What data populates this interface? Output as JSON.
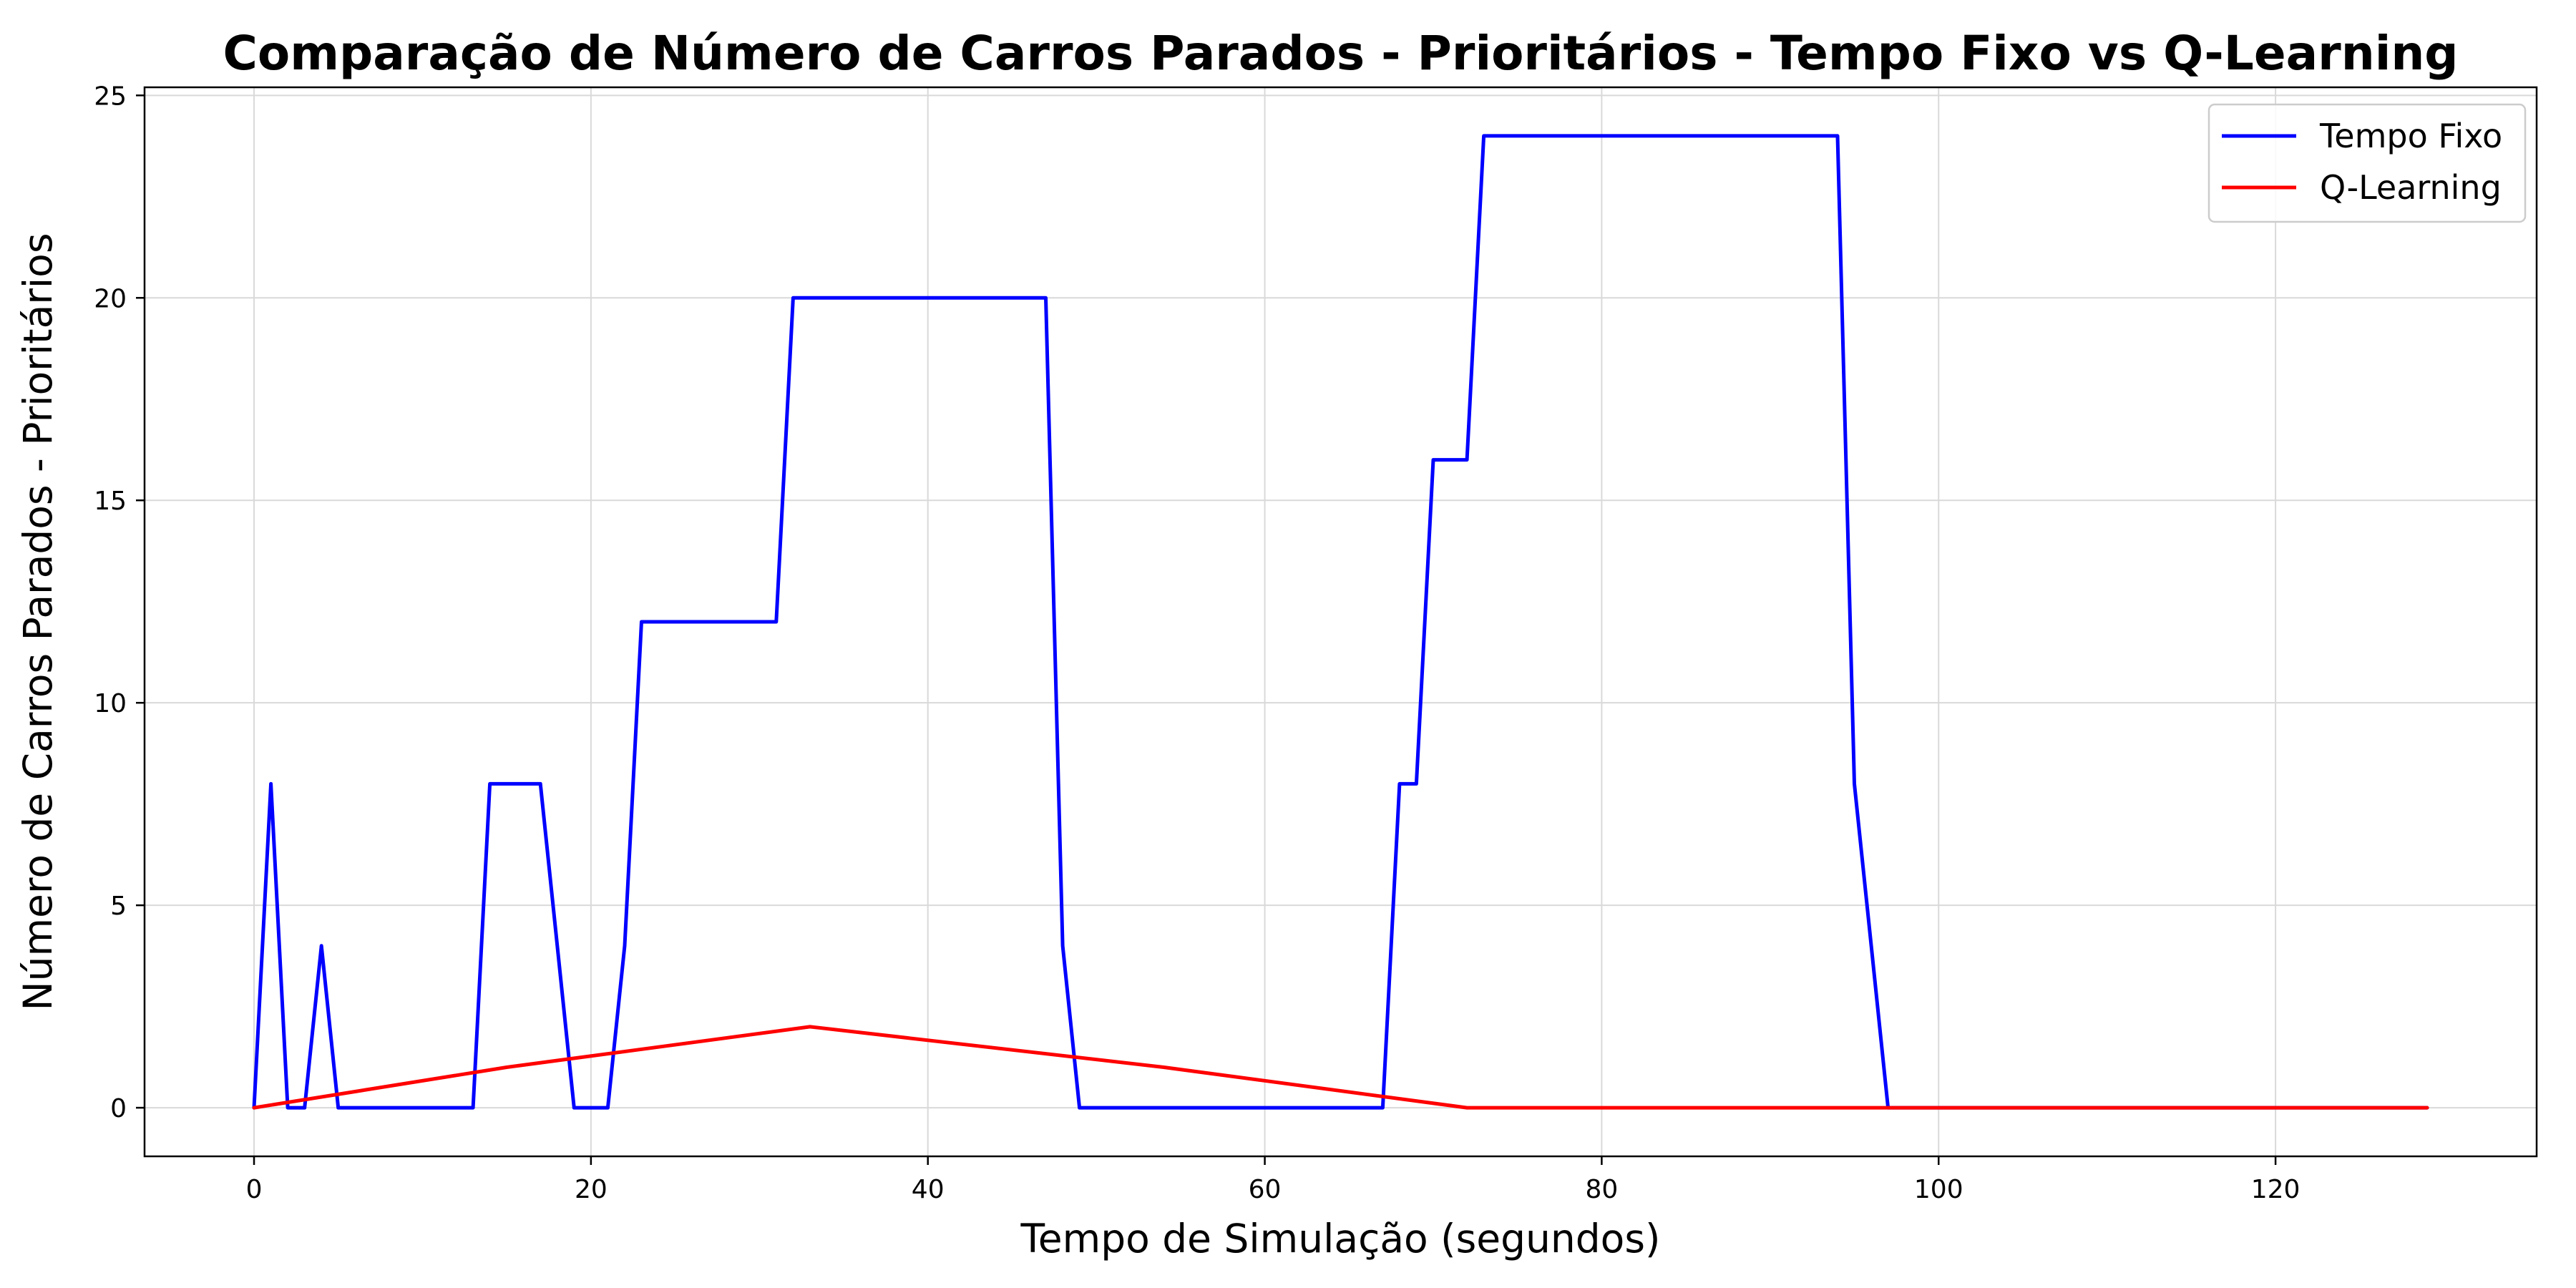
{
  "chart_data": {
    "type": "line",
    "title": "Comparação de Número de Carros Parados - Prioritários - Tempo Fixo vs Q-Learning",
    "xlabel": "Tempo de Simulação (segundos)",
    "ylabel": "Número de Carros Parados - Prioritários",
    "xlim": [
      -6.5,
      135.5
    ],
    "ylim": [
      -1.2,
      25.2
    ],
    "xticks": [
      0,
      20,
      40,
      60,
      80,
      100,
      120
    ],
    "yticks": [
      0,
      5,
      10,
      15,
      20,
      25
    ],
    "grid": true,
    "legend_position": "top-right",
    "series": [
      {
        "name": "Tempo Fixo",
        "color": "#0000ff",
        "x": [
          0,
          1,
          2,
          3,
          4,
          5,
          6,
          13,
          14,
          15,
          16,
          17,
          18,
          19,
          20,
          21,
          22,
          23,
          24,
          30,
          31,
          32,
          33,
          46,
          47,
          48,
          49,
          67,
          68,
          69,
          70,
          71,
          72,
          73,
          94,
          95,
          96,
          97,
          129
        ],
        "y": [
          0,
          8,
          0,
          0,
          4,
          0,
          0,
          0,
          8,
          8,
          8,
          8,
          4,
          0,
          0,
          0,
          4,
          12,
          12,
          12,
          12,
          20,
          20,
          20,
          20,
          4,
          0,
          0,
          8,
          8,
          16,
          16,
          16,
          24,
          24,
          8,
          4,
          0,
          0
        ]
      },
      {
        "name": "Q-Learning",
        "color": "#ff0000",
        "x": [
          0,
          15,
          33,
          54,
          72,
          129
        ],
        "y": [
          0,
          1,
          2,
          1,
          0,
          0
        ]
      }
    ]
  }
}
